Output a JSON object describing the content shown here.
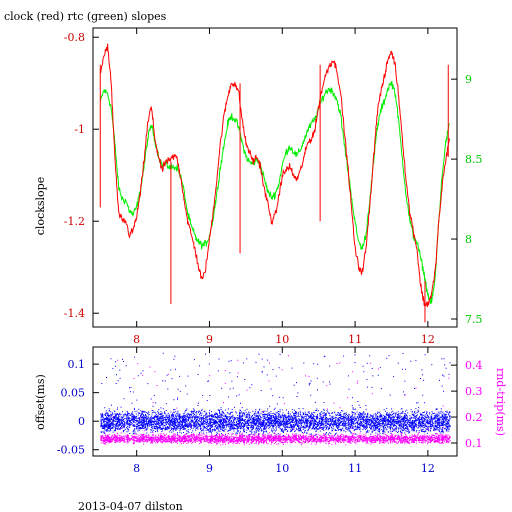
{
  "title": "clock (red) rtc (green) slopes",
  "footer": "2013-04-07 dilston",
  "colors": {
    "red": "#ff0000",
    "green": "#00ee00",
    "blue": "#0000ff",
    "magenta": "#ff00ff",
    "axis": "#000000"
  },
  "chart_data": [
    {
      "type": "line",
      "title": "clock (red) rtc (green) slopes",
      "xlim": [
        7.4,
        12.4
      ],
      "x_ticks": [
        8,
        9,
        10,
        11,
        12
      ],
      "x_tick_labels": [
        "8",
        "9",
        "10",
        "11",
        "12"
      ],
      "y_left": {
        "label": "clockslope",
        "lim": [
          -1.43,
          -0.78
        ],
        "ticks": [
          -0.8,
          -1,
          -1.2,
          -1.4
        ],
        "tick_labels": [
          "-0.8",
          "-1",
          "-1.2",
          "-1.4"
        ]
      },
      "y_right": {
        "label": "",
        "lim": [
          7.45,
          9.32
        ],
        "ticks": [
          9,
          8.5,
          8,
          7.5
        ],
        "tick_labels": [
          "9",
          "8.5",
          "8",
          "7.5"
        ]
      },
      "series": [
        {
          "name": "clock",
          "color": "#ff0000",
          "axis": "left",
          "x": [
            7.5,
            7.55,
            7.6,
            7.65,
            7.7,
            7.75,
            7.8,
            7.85,
            7.9,
            7.95,
            8.0,
            8.05,
            8.1,
            8.15,
            8.2,
            8.25,
            8.3,
            8.35,
            8.4,
            8.45,
            8.5,
            8.55,
            8.6,
            8.65,
            8.7,
            8.75,
            8.8,
            8.85,
            8.9,
            8.95,
            9.0,
            9.05,
            9.1,
            9.15,
            9.2,
            9.25,
            9.3,
            9.35,
            9.4,
            9.45,
            9.5,
            9.55,
            9.6,
            9.65,
            9.7,
            9.75,
            9.8,
            9.85,
            9.9,
            9.95,
            10.0,
            10.05,
            10.1,
            10.15,
            10.2,
            10.25,
            10.3,
            10.35,
            10.4,
            10.45,
            10.5,
            10.55,
            10.6,
            10.65,
            10.7,
            10.75,
            10.8,
            10.85,
            10.9,
            10.95,
            11.0,
            11.05,
            11.1,
            11.15,
            11.2,
            11.25,
            11.3,
            11.35,
            11.4,
            11.45,
            11.5,
            11.55,
            11.6,
            11.65,
            11.7,
            11.75,
            11.8,
            11.85,
            11.9,
            11.95,
            12.0,
            12.05,
            12.1,
            12.15,
            12.2,
            12.25,
            12.3
          ],
          "y": [
            -0.88,
            -0.84,
            -0.82,
            -0.9,
            -1.06,
            -1.18,
            -1.2,
            -1.2,
            -1.23,
            -1.22,
            -1.19,
            -1.14,
            -1.07,
            -0.99,
            -0.95,
            -1.02,
            -1.06,
            -1.09,
            -1.07,
            -1.07,
            -1.06,
            -1.06,
            -1.1,
            -1.15,
            -1.2,
            -1.23,
            -1.26,
            -1.3,
            -1.33,
            -1.3,
            -1.24,
            -1.18,
            -1.11,
            -1.03,
            -0.97,
            -0.93,
            -0.9,
            -0.9,
            -0.92,
            -0.98,
            -1.03,
            -1.05,
            -1.07,
            -1.06,
            -1.08,
            -1.13,
            -1.16,
            -1.2,
            -1.19,
            -1.15,
            -1.1,
            -1.09,
            -1.08,
            -1.1,
            -1.11,
            -1.09,
            -1.06,
            -1.03,
            -1.02,
            -1.0,
            -0.95,
            -0.91,
            -0.88,
            -0.86,
            -0.85,
            -0.87,
            -0.92,
            -1.0,
            -1.08,
            -1.17,
            -1.26,
            -1.3,
            -1.31,
            -1.26,
            -1.17,
            -1.07,
            -0.97,
            -0.92,
            -0.89,
            -0.85,
            -0.83,
            -0.86,
            -0.93,
            -1.02,
            -1.11,
            -1.18,
            -1.22,
            -1.26,
            -1.34,
            -1.38,
            -1.38,
            -1.36,
            -1.31,
            -1.2,
            -1.12,
            -1.06,
            -1.02
          ]
        },
        {
          "name": "rtc",
          "color": "#00ee00",
          "axis": "right",
          "x": [
            7.5,
            7.55,
            7.6,
            7.65,
            7.7,
            7.75,
            7.8,
            7.85,
            7.9,
            7.95,
            8.0,
            8.05,
            8.1,
            8.15,
            8.2,
            8.25,
            8.3,
            8.35,
            8.4,
            8.45,
            8.5,
            8.55,
            8.6,
            8.65,
            8.7,
            8.75,
            8.8,
            8.85,
            8.9,
            8.95,
            9.0,
            9.05,
            9.1,
            9.15,
            9.2,
            9.25,
            9.3,
            9.35,
            9.4,
            9.45,
            9.5,
            9.55,
            9.6,
            9.65,
            9.7,
            9.75,
            9.8,
            9.85,
            9.9,
            9.95,
            10.0,
            10.05,
            10.1,
            10.15,
            10.2,
            10.25,
            10.3,
            10.35,
            10.4,
            10.45,
            10.5,
            10.55,
            10.6,
            10.65,
            10.7,
            10.75,
            10.8,
            10.85,
            10.9,
            10.95,
            11.0,
            11.05,
            11.1,
            11.15,
            11.2,
            11.25,
            11.3,
            11.35,
            11.4,
            11.45,
            11.5,
            11.55,
            11.6,
            11.65,
            11.7,
            11.75,
            11.8,
            11.85,
            11.9,
            11.95,
            12.0,
            12.05,
            12.1,
            12.15,
            12.2,
            12.25,
            12.3
          ],
          "y": [
            8.86,
            8.93,
            8.91,
            8.82,
            8.6,
            8.33,
            8.25,
            8.24,
            8.18,
            8.15,
            8.2,
            8.3,
            8.45,
            8.62,
            8.72,
            8.62,
            8.52,
            8.46,
            8.47,
            8.45,
            8.45,
            8.45,
            8.4,
            8.3,
            8.16,
            8.08,
            8.02,
            7.98,
            7.96,
            7.97,
            8.02,
            8.13,
            8.28,
            8.45,
            8.59,
            8.72,
            8.77,
            8.75,
            8.7,
            8.6,
            8.52,
            8.48,
            8.47,
            8.5,
            8.46,
            8.38,
            8.3,
            8.26,
            8.28,
            8.34,
            8.46,
            8.54,
            8.58,
            8.55,
            8.52,
            8.56,
            8.62,
            8.68,
            8.72,
            8.75,
            8.82,
            8.88,
            8.92,
            8.94,
            8.92,
            8.87,
            8.78,
            8.6,
            8.44,
            8.27,
            8.1,
            7.98,
            7.94,
            8.03,
            8.24,
            8.46,
            8.68,
            8.8,
            8.86,
            8.94,
            8.98,
            8.92,
            8.73,
            8.5,
            8.28,
            8.12,
            8.02,
            7.98,
            7.88,
            7.78,
            7.65,
            7.6,
            7.75,
            8.12,
            8.42,
            8.62,
            8.72
          ]
        }
      ]
    },
    {
      "type": "scatter",
      "xlim": [
        7.4,
        12.4
      ],
      "x_ticks": [
        8,
        9,
        10,
        11,
        12
      ],
      "x_tick_labels": [
        "8",
        "9",
        "10",
        "11",
        "12"
      ],
      "y_left": {
        "label": "offset(ms)",
        "lim": [
          -0.061,
          0.13
        ],
        "ticks": [
          0.1,
          0.05,
          0,
          -0.05
        ],
        "tick_labels": [
          "0.1",
          "0.05",
          "0",
          "-0.05"
        ]
      },
      "y_right": {
        "label": "rnd-trip(ms)",
        "lim": [
          0.05,
          0.47
        ],
        "ticks": [
          0.4,
          0.3,
          0.2,
          0.1
        ],
        "tick_labels": [
          "0.4",
          "0.3",
          "0.2",
          "0.1"
        ]
      },
      "series": [
        {
          "name": "offset",
          "color": "#0000ff",
          "axis": "left",
          "x_range": [
            7.5,
            12.3
          ],
          "center": 0.0,
          "spread": 0.028,
          "outlier_max": 0.12
        },
        {
          "name": "rnd-trip",
          "color": "#ff00ff",
          "axis": "right",
          "x_range": [
            7.5,
            12.3
          ],
          "center": 0.118,
          "spread": 0.025,
          "outlier_max": 0.44
        }
      ]
    }
  ]
}
